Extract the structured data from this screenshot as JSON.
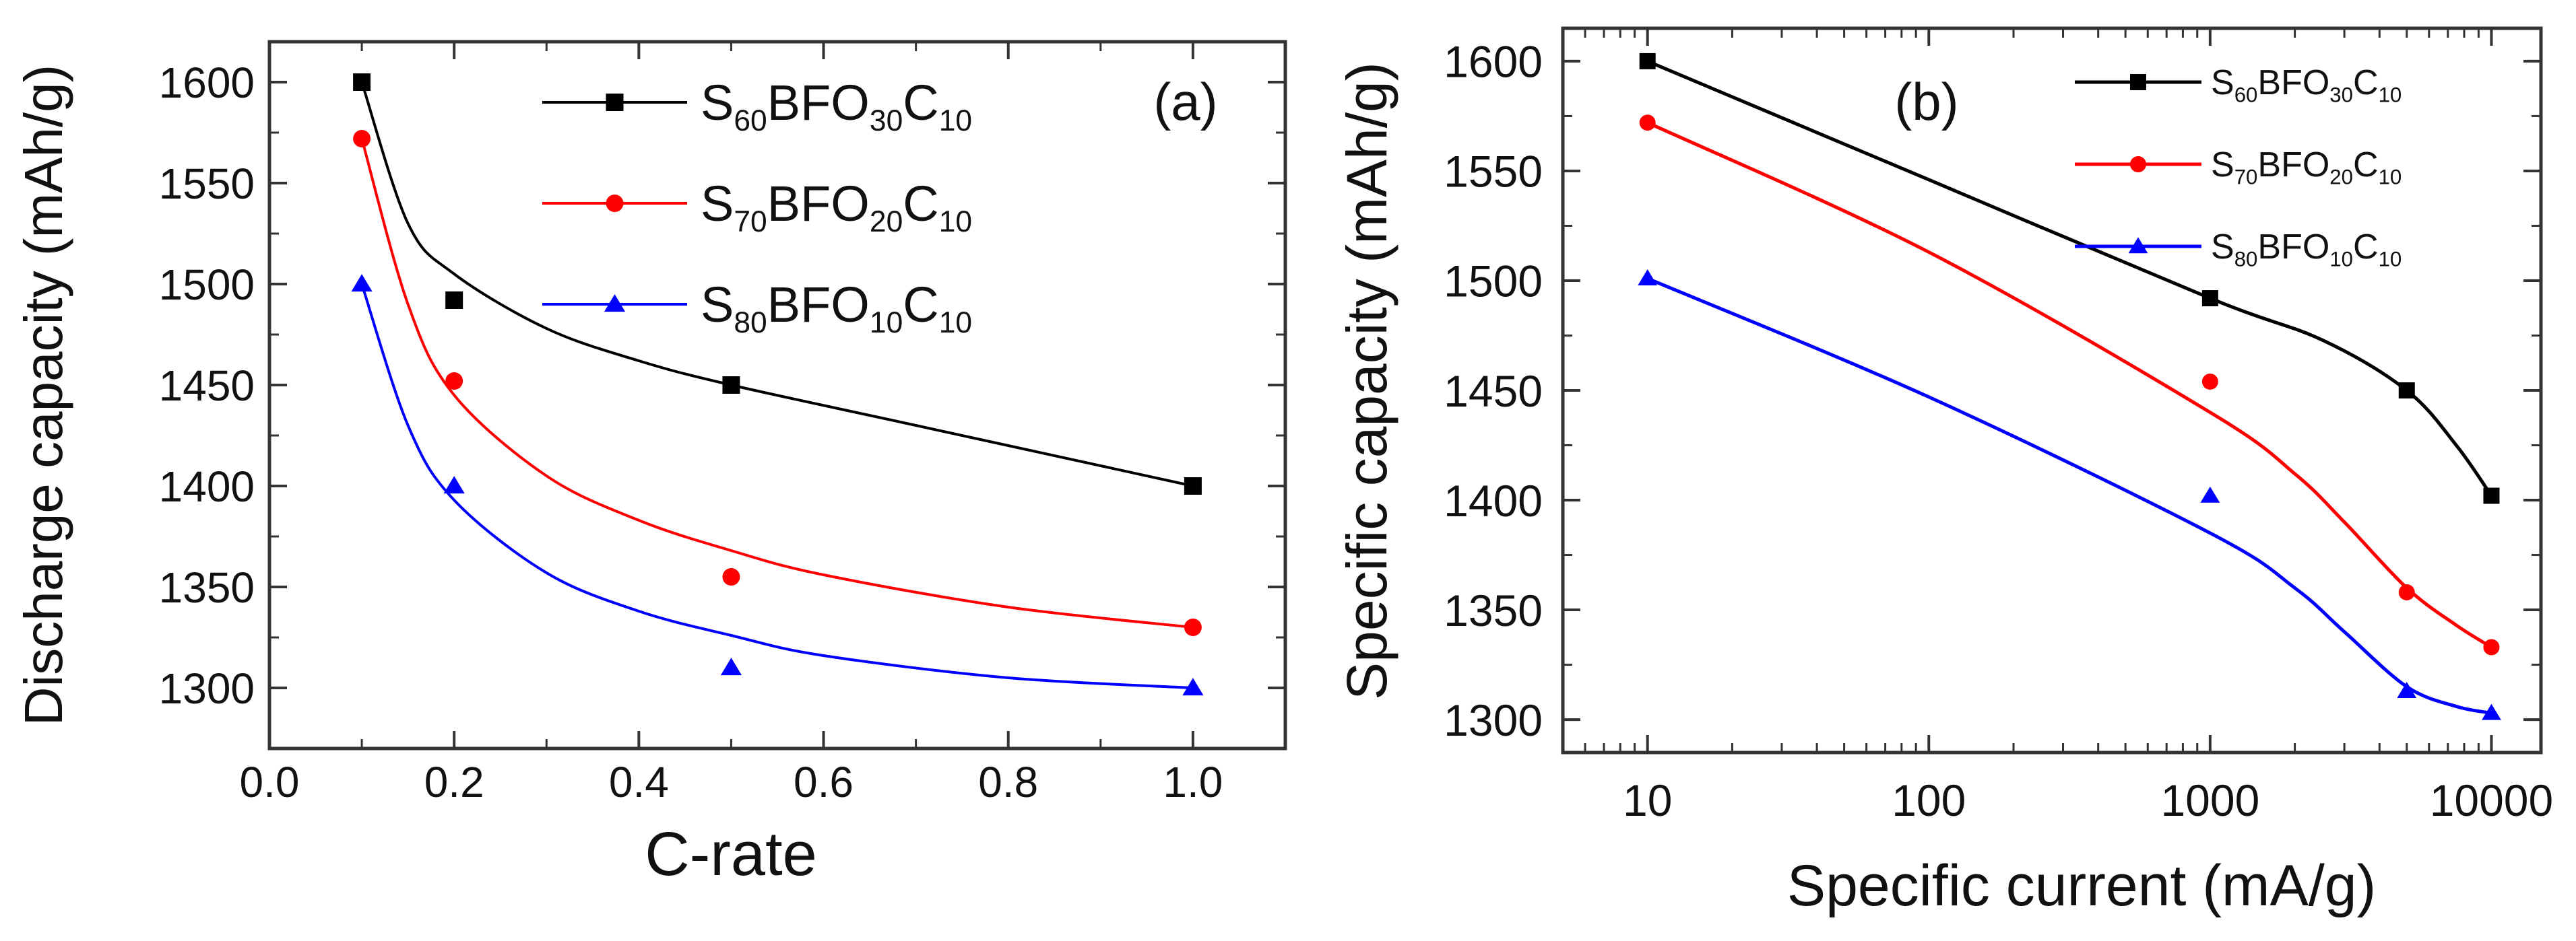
{
  "chart_data": [
    {
      "type": "line",
      "panel_label": "(a)",
      "xlabel": "C-rate",
      "ylabel": "Discharge capacity (mAh/g)",
      "xscale": "linear",
      "xlim": [
        0.0,
        1.1
      ],
      "ylim": [
        1270,
        1620
      ],
      "xticks": [
        0.0,
        0.2,
        0.4,
        0.6,
        0.8,
        1.0
      ],
      "xtick_labels": [
        "0.0",
        "0.2",
        "0.4",
        "0.6",
        "0.8",
        "1.0"
      ],
      "yticks": [
        1300,
        1350,
        1400,
        1450,
        1500,
        1550,
        1600
      ],
      "ytick_labels": [
        "1300",
        "1350",
        "1400",
        "1450",
        "1500",
        "1550",
        "1600"
      ],
      "legend_position": "top-right",
      "series": [
        {
          "name": "S60BFO30C10",
          "base": "S",
          "sub1": "60",
          "mid": "BFO",
          "sub2": "30",
          "tail": "C",
          "sub3": "10",
          "color": "#000000",
          "marker": "square",
          "x": [
            0.1,
            0.2,
            0.5,
            1.0
          ],
          "values": [
            1600,
            1492,
            1450,
            1400
          ],
          "curve_x": [
            0.1,
            0.15,
            0.2,
            0.3,
            0.4,
            0.5,
            0.7,
            1.0
          ],
          "curve_y": [
            1600,
            1530,
            1505,
            1478,
            1462,
            1450,
            1430,
            1400
          ]
        },
        {
          "name": "S70BFO20C10",
          "base": "S",
          "sub1": "70",
          "mid": "BFO",
          "sub2": "20",
          "tail": "C",
          "sub3": "10",
          "color": "#ff0000",
          "marker": "circle",
          "x": [
            0.1,
            0.2,
            0.5,
            1.0
          ],
          "values": [
            1572,
            1452,
            1355,
            1330
          ],
          "curve_x": [
            0.1,
            0.15,
            0.2,
            0.3,
            0.4,
            0.5,
            0.6,
            0.8,
            1.0
          ],
          "curve_y": [
            1572,
            1490,
            1445,
            1405,
            1383,
            1368,
            1356,
            1340,
            1330
          ]
        },
        {
          "name": "S80BFO10C10",
          "base": "S",
          "sub1": "80",
          "mid": "BFO",
          "sub2": "10",
          "tail": "C",
          "sub3": "10",
          "color": "#0000ff",
          "marker": "triangle",
          "x": [
            0.1,
            0.2,
            0.5,
            1.0
          ],
          "values": [
            1500,
            1400,
            1310,
            1300
          ],
          "curve_x": [
            0.1,
            0.15,
            0.2,
            0.3,
            0.4,
            0.5,
            0.6,
            0.8,
            1.0
          ],
          "curve_y": [
            1500,
            1430,
            1393,
            1357,
            1338,
            1326,
            1316,
            1305,
            1300
          ]
        }
      ]
    },
    {
      "type": "line",
      "panel_label": "(b)",
      "xlabel": "Specific current (mA/g)",
      "ylabel": "Specific capacity (mAh/g)",
      "xscale": "log",
      "xlim": [
        5,
        15000
      ],
      "ylim": [
        1285,
        1615
      ],
      "xticks": [
        10,
        100,
        1000,
        10000
      ],
      "xtick_labels": [
        "10",
        "100",
        "1000",
        "10000"
      ],
      "yticks": [
        1300,
        1350,
        1400,
        1450,
        1500,
        1550,
        1600
      ],
      "ytick_labels": [
        "1300",
        "1350",
        "1400",
        "1450",
        "1500",
        "1550",
        "1600"
      ],
      "legend_position": "top-right",
      "series": [
        {
          "name": "S60BFO30C10",
          "base": "S",
          "sub1": "60",
          "mid": "BFO",
          "sub2": "30",
          "tail": "C",
          "sub3": "10",
          "color": "#000000",
          "marker": "square",
          "x": [
            10,
            1000,
            5000,
            10000
          ],
          "values": [
            1600,
            1492,
            1450,
            1402
          ],
          "curve_x": [
            10,
            100,
            1000,
            2500,
            5000,
            7500,
            10000
          ],
          "curve_y": [
            1600,
            1546,
            1492,
            1473,
            1450,
            1425,
            1402
          ]
        },
        {
          "name": "S70BFO20C10",
          "base": "S",
          "sub1": "70",
          "mid": "BFO",
          "sub2": "20",
          "tail": "C",
          "sub3": "10",
          "color": "#ff0000",
          "marker": "circle",
          "x": [
            10,
            1000,
            5000,
            10000
          ],
          "values": [
            1572,
            1454,
            1358,
            1333
          ],
          "curve_x": [
            10,
            100,
            1000,
            2000,
            3000,
            5000,
            7500,
            10000
          ],
          "curve_y": [
            1572,
            1513,
            1440,
            1412,
            1390,
            1360,
            1343,
            1333
          ]
        },
        {
          "name": "S80BFO10C10",
          "base": "S",
          "sub1": "80",
          "mid": "BFO",
          "sub2": "10",
          "tail": "C",
          "sub3": "10",
          "color": "#0000ff",
          "marker": "triangle",
          "x": [
            10,
            1000,
            5000,
            10000
          ],
          "values": [
            1501,
            1402,
            1313,
            1303
          ],
          "curve_x": [
            10,
            100,
            1000,
            2000,
            3000,
            5000,
            7500,
            10000
          ],
          "curve_y": [
            1501,
            1447,
            1385,
            1360,
            1340,
            1315,
            1306,
            1303
          ]
        }
      ]
    }
  ]
}
